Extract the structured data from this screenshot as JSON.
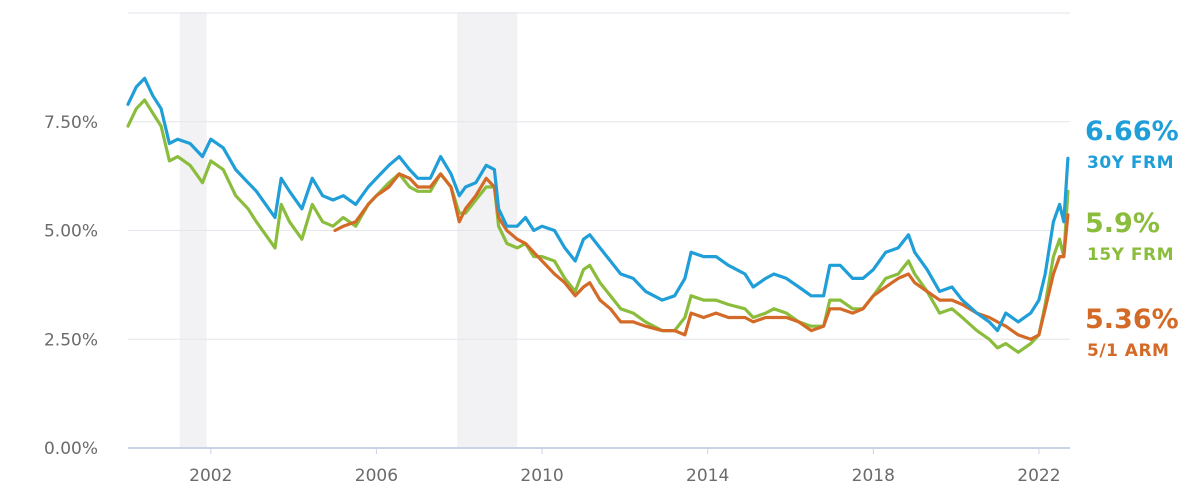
{
  "chart_data": {
    "type": "line",
    "title": "",
    "xlabel": "",
    "ylabel": "",
    "xlim": [
      2000.0,
      2022.75
    ],
    "ylim": [
      0,
      10
    ],
    "y_ticks": [
      {
        "value": 0,
        "label": "0.00%"
      },
      {
        "value": 2.5,
        "label": "2.50%"
      },
      {
        "value": 5,
        "label": "5.00%"
      },
      {
        "value": 7.5,
        "label": "7.50%"
      }
    ],
    "x_ticks": [
      {
        "value": 2002,
        "label": "2002"
      },
      {
        "value": 2006,
        "label": "2006"
      },
      {
        "value": 2010,
        "label": "2010"
      },
      {
        "value": 2014,
        "label": "2014"
      },
      {
        "value": 2018,
        "label": "2018"
      },
      {
        "value": 2022,
        "label": "2022"
      }
    ],
    "grid": true,
    "recessions": [
      [
        2001.25,
        2001.9
      ],
      [
        2007.95,
        2009.4
      ]
    ],
    "series": [
      {
        "name": "30Y FRM",
        "end_label": "6.66%",
        "color": "#1f9ed8",
        "points": [
          [
            2000.0,
            7.9
          ],
          [
            2000.2,
            8.3
          ],
          [
            2000.4,
            8.5
          ],
          [
            2000.6,
            8.1
          ],
          [
            2000.8,
            7.8
          ],
          [
            2001.0,
            7.0
          ],
          [
            2001.2,
            7.1
          ],
          [
            2001.5,
            7.0
          ],
          [
            2001.8,
            6.7
          ],
          [
            2002.0,
            7.1
          ],
          [
            2002.3,
            6.9
          ],
          [
            2002.6,
            6.4
          ],
          [
            2002.9,
            6.1
          ],
          [
            2003.1,
            5.9
          ],
          [
            2003.4,
            5.5
          ],
          [
            2003.55,
            5.3
          ],
          [
            2003.7,
            6.2
          ],
          [
            2003.9,
            5.9
          ],
          [
            2004.2,
            5.5
          ],
          [
            2004.45,
            6.2
          ],
          [
            2004.7,
            5.8
          ],
          [
            2004.95,
            5.7
          ],
          [
            2005.2,
            5.8
          ],
          [
            2005.5,
            5.6
          ],
          [
            2005.8,
            6.0
          ],
          [
            2006.0,
            6.2
          ],
          [
            2006.3,
            6.5
          ],
          [
            2006.55,
            6.7
          ],
          [
            2006.8,
            6.4
          ],
          [
            2007.0,
            6.2
          ],
          [
            2007.3,
            6.2
          ],
          [
            2007.55,
            6.7
          ],
          [
            2007.8,
            6.3
          ],
          [
            2008.0,
            5.8
          ],
          [
            2008.15,
            6.0
          ],
          [
            2008.4,
            6.1
          ],
          [
            2008.65,
            6.5
          ],
          [
            2008.85,
            6.4
          ],
          [
            2008.95,
            5.5
          ],
          [
            2009.15,
            5.1
          ],
          [
            2009.4,
            5.1
          ],
          [
            2009.6,
            5.3
          ],
          [
            2009.8,
            5.0
          ],
          [
            2010.0,
            5.1
          ],
          [
            2010.3,
            5.0
          ],
          [
            2010.55,
            4.6
          ],
          [
            2010.8,
            4.3
          ],
          [
            2011.0,
            4.8
          ],
          [
            2011.15,
            4.9
          ],
          [
            2011.4,
            4.6
          ],
          [
            2011.65,
            4.3
          ],
          [
            2011.9,
            4.0
          ],
          [
            2012.2,
            3.9
          ],
          [
            2012.5,
            3.6
          ],
          [
            2012.9,
            3.4
          ],
          [
            2013.2,
            3.5
          ],
          [
            2013.45,
            3.9
          ],
          [
            2013.6,
            4.5
          ],
          [
            2013.9,
            4.4
          ],
          [
            2014.2,
            4.4
          ],
          [
            2014.5,
            4.2
          ],
          [
            2014.9,
            4.0
          ],
          [
            2015.1,
            3.7
          ],
          [
            2015.4,
            3.9
          ],
          [
            2015.6,
            4.0
          ],
          [
            2015.9,
            3.9
          ],
          [
            2016.2,
            3.7
          ],
          [
            2016.5,
            3.5
          ],
          [
            2016.8,
            3.5
          ],
          [
            2016.95,
            4.2
          ],
          [
            2017.2,
            4.2
          ],
          [
            2017.5,
            3.9
          ],
          [
            2017.75,
            3.9
          ],
          [
            2018.0,
            4.1
          ],
          [
            2018.3,
            4.5
          ],
          [
            2018.6,
            4.6
          ],
          [
            2018.85,
            4.9
          ],
          [
            2019.0,
            4.5
          ],
          [
            2019.3,
            4.1
          ],
          [
            2019.6,
            3.6
          ],
          [
            2019.9,
            3.7
          ],
          [
            2020.15,
            3.4
          ],
          [
            2020.5,
            3.1
          ],
          [
            2020.8,
            2.9
          ],
          [
            2021.0,
            2.7
          ],
          [
            2021.2,
            3.1
          ],
          [
            2021.5,
            2.9
          ],
          [
            2021.8,
            3.1
          ],
          [
            2022.0,
            3.4
          ],
          [
            2022.15,
            4.0
          ],
          [
            2022.35,
            5.2
          ],
          [
            2022.5,
            5.6
          ],
          [
            2022.6,
            5.2
          ],
          [
            2022.7,
            6.66
          ]
        ]
      },
      {
        "name": "15Y FRM",
        "end_label": "5.9%",
        "color": "#8bbd3d",
        "points": [
          [
            2000.0,
            7.4
          ],
          [
            2000.2,
            7.8
          ],
          [
            2000.4,
            8.0
          ],
          [
            2000.6,
            7.7
          ],
          [
            2000.8,
            7.4
          ],
          [
            2001.0,
            6.6
          ],
          [
            2001.2,
            6.7
          ],
          [
            2001.5,
            6.5
          ],
          [
            2001.8,
            6.1
          ],
          [
            2002.0,
            6.6
          ],
          [
            2002.3,
            6.4
          ],
          [
            2002.6,
            5.8
          ],
          [
            2002.9,
            5.5
          ],
          [
            2003.1,
            5.2
          ],
          [
            2003.4,
            4.8
          ],
          [
            2003.55,
            4.6
          ],
          [
            2003.7,
            5.6
          ],
          [
            2003.9,
            5.2
          ],
          [
            2004.2,
            4.8
          ],
          [
            2004.45,
            5.6
          ],
          [
            2004.7,
            5.2
          ],
          [
            2004.95,
            5.1
          ],
          [
            2005.2,
            5.3
          ],
          [
            2005.5,
            5.1
          ],
          [
            2005.8,
            5.6
          ],
          [
            2006.0,
            5.8
          ],
          [
            2006.3,
            6.1
          ],
          [
            2006.55,
            6.3
          ],
          [
            2006.8,
            6.0
          ],
          [
            2007.0,
            5.9
          ],
          [
            2007.3,
            5.9
          ],
          [
            2007.55,
            6.3
          ],
          [
            2007.8,
            6.0
          ],
          [
            2008.0,
            5.4
          ],
          [
            2008.15,
            5.4
          ],
          [
            2008.4,
            5.7
          ],
          [
            2008.65,
            6.0
          ],
          [
            2008.85,
            6.0
          ],
          [
            2008.95,
            5.1
          ],
          [
            2009.15,
            4.7
          ],
          [
            2009.4,
            4.6
          ],
          [
            2009.6,
            4.7
          ],
          [
            2009.8,
            4.4
          ],
          [
            2010.0,
            4.4
          ],
          [
            2010.3,
            4.3
          ],
          [
            2010.55,
            3.9
          ],
          [
            2010.8,
            3.6
          ],
          [
            2011.0,
            4.1
          ],
          [
            2011.15,
            4.2
          ],
          [
            2011.4,
            3.8
          ],
          [
            2011.65,
            3.5
          ],
          [
            2011.9,
            3.2
          ],
          [
            2012.2,
            3.1
          ],
          [
            2012.5,
            2.9
          ],
          [
            2012.9,
            2.7
          ],
          [
            2013.2,
            2.7
          ],
          [
            2013.45,
            3.0
          ],
          [
            2013.6,
            3.5
          ],
          [
            2013.9,
            3.4
          ],
          [
            2014.2,
            3.4
          ],
          [
            2014.5,
            3.3
          ],
          [
            2014.9,
            3.2
          ],
          [
            2015.1,
            3.0
          ],
          [
            2015.4,
            3.1
          ],
          [
            2015.6,
            3.2
          ],
          [
            2015.9,
            3.1
          ],
          [
            2016.2,
            2.9
          ],
          [
            2016.5,
            2.8
          ],
          [
            2016.8,
            2.8
          ],
          [
            2016.95,
            3.4
          ],
          [
            2017.2,
            3.4
          ],
          [
            2017.5,
            3.2
          ],
          [
            2017.75,
            3.2
          ],
          [
            2018.0,
            3.5
          ],
          [
            2018.3,
            3.9
          ],
          [
            2018.6,
            4.0
          ],
          [
            2018.85,
            4.3
          ],
          [
            2019.0,
            4.0
          ],
          [
            2019.3,
            3.6
          ],
          [
            2019.6,
            3.1
          ],
          [
            2019.9,
            3.2
          ],
          [
            2020.15,
            3.0
          ],
          [
            2020.5,
            2.7
          ],
          [
            2020.8,
            2.5
          ],
          [
            2021.0,
            2.3
          ],
          [
            2021.2,
            2.4
          ],
          [
            2021.5,
            2.2
          ],
          [
            2021.8,
            2.4
          ],
          [
            2022.0,
            2.6
          ],
          [
            2022.15,
            3.3
          ],
          [
            2022.35,
            4.4
          ],
          [
            2022.5,
            4.8
          ],
          [
            2022.6,
            4.4
          ],
          [
            2022.7,
            5.9
          ]
        ]
      },
      {
        "name": "5/1 ARM",
        "end_label": "5.36%",
        "color": "#d46a27",
        "points": [
          [
            2005.0,
            5.0
          ],
          [
            2005.2,
            5.1
          ],
          [
            2005.5,
            5.2
          ],
          [
            2005.8,
            5.6
          ],
          [
            2006.0,
            5.8
          ],
          [
            2006.3,
            6.0
          ],
          [
            2006.55,
            6.3
          ],
          [
            2006.8,
            6.2
          ],
          [
            2007.0,
            6.0
          ],
          [
            2007.3,
            6.0
          ],
          [
            2007.55,
            6.3
          ],
          [
            2007.8,
            6.0
          ],
          [
            2008.0,
            5.2
          ],
          [
            2008.15,
            5.5
          ],
          [
            2008.4,
            5.8
          ],
          [
            2008.65,
            6.2
          ],
          [
            2008.85,
            6.0
          ],
          [
            2008.95,
            5.3
          ],
          [
            2009.15,
            5.0
          ],
          [
            2009.4,
            4.8
          ],
          [
            2009.6,
            4.7
          ],
          [
            2009.8,
            4.5
          ],
          [
            2010.0,
            4.3
          ],
          [
            2010.3,
            4.0
          ],
          [
            2010.55,
            3.8
          ],
          [
            2010.8,
            3.5
          ],
          [
            2011.0,
            3.7
          ],
          [
            2011.15,
            3.8
          ],
          [
            2011.4,
            3.4
          ],
          [
            2011.65,
            3.2
          ],
          [
            2011.9,
            2.9
          ],
          [
            2012.2,
            2.9
          ],
          [
            2012.5,
            2.8
          ],
          [
            2012.9,
            2.7
          ],
          [
            2013.2,
            2.7
          ],
          [
            2013.45,
            2.6
          ],
          [
            2013.6,
            3.1
          ],
          [
            2013.9,
            3.0
          ],
          [
            2014.2,
            3.1
          ],
          [
            2014.5,
            3.0
          ],
          [
            2014.9,
            3.0
          ],
          [
            2015.1,
            2.9
          ],
          [
            2015.4,
            3.0
          ],
          [
            2015.6,
            3.0
          ],
          [
            2015.9,
            3.0
          ],
          [
            2016.2,
            2.9
          ],
          [
            2016.5,
            2.7
          ],
          [
            2016.8,
            2.8
          ],
          [
            2016.95,
            3.2
          ],
          [
            2017.2,
            3.2
          ],
          [
            2017.5,
            3.1
          ],
          [
            2017.75,
            3.2
          ],
          [
            2018.0,
            3.5
          ],
          [
            2018.3,
            3.7
          ],
          [
            2018.6,
            3.9
          ],
          [
            2018.85,
            4.0
          ],
          [
            2019.0,
            3.8
          ],
          [
            2019.3,
            3.6
          ],
          [
            2019.6,
            3.4
          ],
          [
            2019.9,
            3.4
          ],
          [
            2020.15,
            3.3
          ],
          [
            2020.5,
            3.1
          ],
          [
            2020.8,
            3.0
          ],
          [
            2021.0,
            2.9
          ],
          [
            2021.2,
            2.8
          ],
          [
            2021.5,
            2.6
          ],
          [
            2021.8,
            2.5
          ],
          [
            2022.0,
            2.6
          ],
          [
            2022.15,
            3.2
          ],
          [
            2022.35,
            4.0
          ],
          [
            2022.5,
            4.4
          ],
          [
            2022.6,
            4.4
          ],
          [
            2022.7,
            5.36
          ]
        ]
      }
    ]
  }
}
